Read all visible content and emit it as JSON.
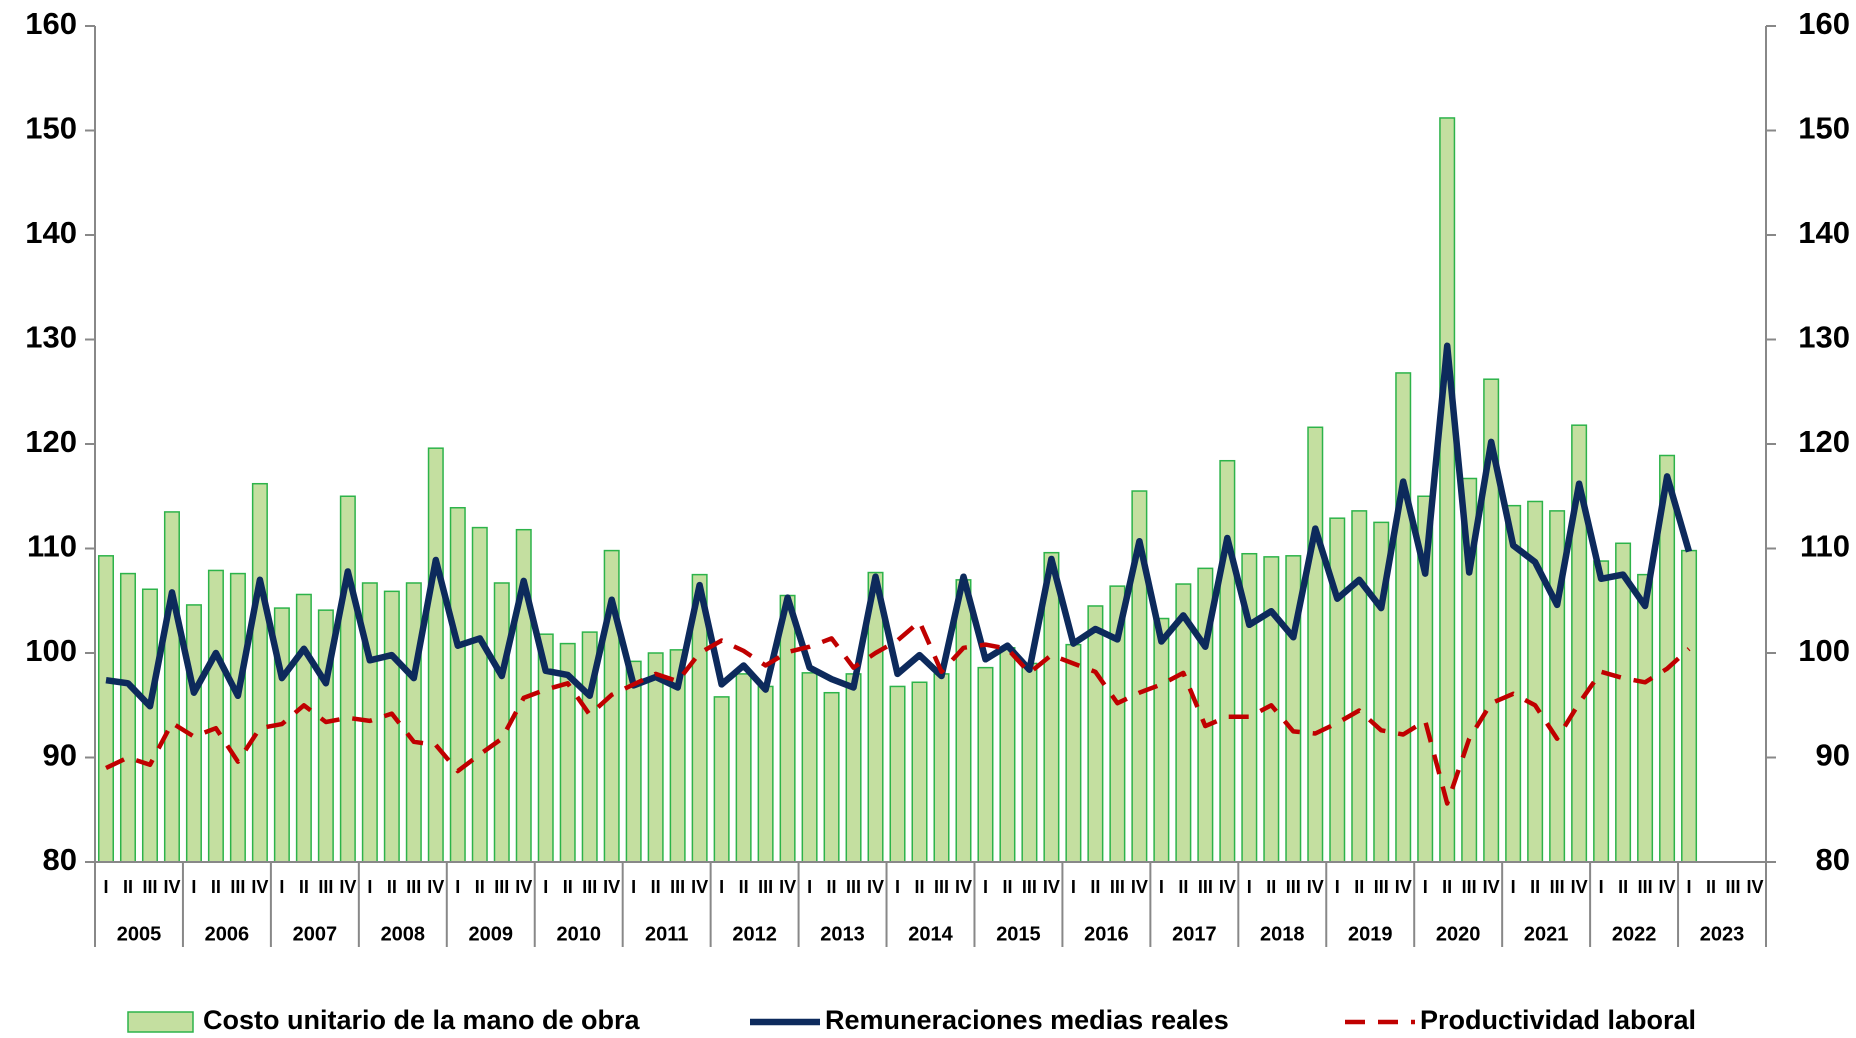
{
  "chart_data": {
    "type": "bar-line",
    "categories": [
      "I",
      "II",
      "III",
      "IV",
      "I",
      "II",
      "III",
      "IV",
      "I",
      "II",
      "III",
      "IV",
      "I",
      "II",
      "III",
      "IV",
      "I",
      "II",
      "III",
      "IV",
      "I",
      "II",
      "III",
      "IV",
      "I",
      "II",
      "III",
      "IV",
      "I",
      "II",
      "III",
      "IV",
      "I",
      "II",
      "III",
      "IV",
      "I",
      "II",
      "III",
      "IV",
      "I",
      "II",
      "III",
      "IV",
      "I",
      "II",
      "III",
      "IV",
      "I",
      "II",
      "III",
      "IV",
      "I",
      "II",
      "III",
      "IV",
      "I",
      "II",
      "III",
      "IV",
      "I",
      "II",
      "III",
      "IV",
      "I",
      "II",
      "III",
      "IV",
      "I",
      "II",
      "III",
      "IV",
      "I",
      "II",
      "III",
      "IV"
    ],
    "years": [
      "2005",
      "2006",
      "2007",
      "2008",
      "2009",
      "2010",
      "2011",
      "2012",
      "2013",
      "2014",
      "2015",
      "2016",
      "2017",
      "2018",
      "2019",
      "2020",
      "2021",
      "2022",
      "2023"
    ],
    "series": [
      {
        "name": "Costo unitario de la mano de obra",
        "kind": "bar",
        "color": "#c4dfa0",
        "edge": "#2db34a",
        "values": [
          109.3,
          107.6,
          106.1,
          113.5,
          104.6,
          107.9,
          107.6,
          116.2,
          104.3,
          105.6,
          104.1,
          115.0,
          106.7,
          105.9,
          106.7,
          119.6,
          113.9,
          112.0,
          106.7,
          111.8,
          101.8,
          100.9,
          102.0,
          109.8,
          99.2,
          100.0,
          100.3,
          107.5,
          95.8,
          98.0,
          96.8,
          105.5,
          98.1,
          96.2,
          98.0,
          107.7,
          96.8,
          97.2,
          98.0,
          107.0,
          98.6,
          100.5,
          99.0,
          109.6,
          100.8,
          104.5,
          106.4,
          115.5,
          103.3,
          106.6,
          108.1,
          118.4,
          109.5,
          109.2,
          109.3,
          121.6,
          112.9,
          113.6,
          112.5,
          126.8,
          115.0,
          151.2,
          116.7,
          126.2,
          114.1,
          114.5,
          113.6,
          121.8,
          108.8,
          110.5,
          107.5,
          118.9,
          109.8,
          null,
          null,
          null
        ]
      },
      {
        "name": "Remuneraciones medias reales",
        "kind": "line",
        "color": "#0d2a5c",
        "values": [
          97.4,
          97.1,
          94.9,
          105.8,
          96.2,
          100.0,
          95.9,
          107.0,
          97.6,
          100.4,
          97.1,
          107.8,
          99.3,
          99.8,
          97.6,
          108.9,
          100.7,
          101.4,
          97.8,
          106.9,
          98.3,
          97.9,
          95.9,
          105.1,
          96.9,
          97.7,
          96.7,
          106.5,
          97.0,
          98.8,
          96.5,
          105.3,
          98.6,
          97.5,
          96.7,
          107.3,
          98.0,
          99.8,
          97.8,
          107.3,
          99.4,
          100.7,
          98.4,
          109.0,
          100.9,
          102.3,
          101.3,
          110.7,
          101.1,
          103.6,
          100.6,
          111.0,
          102.7,
          104.0,
          101.5,
          111.9,
          105.2,
          107.0,
          104.3,
          116.4,
          107.6,
          129.4,
          107.7,
          120.2,
          110.3,
          108.7,
          104.6,
          116.2,
          107.1,
          107.5,
          104.5,
          116.9,
          109.7,
          null,
          null,
          null
        ]
      },
      {
        "name": "Productividad laboral",
        "kind": "dashed",
        "color": "#c00000",
        "values": [
          89.0,
          90.0,
          89.3,
          93.3,
          92.0,
          92.8,
          89.6,
          92.8,
          93.2,
          95.0,
          93.4,
          93.8,
          93.5,
          94.2,
          91.5,
          91.2,
          88.7,
          90.3,
          91.8,
          95.7,
          96.5,
          97.1,
          94.1,
          96.0,
          97.0,
          98.0,
          97.3,
          100.0,
          101.2,
          100.2,
          98.8,
          100.1,
          100.6,
          101.4,
          98.6,
          100.0,
          101.2,
          103.0,
          98.2,
          100.5,
          100.8,
          100.4,
          98.1,
          99.8,
          99.0,
          98.2,
          95.2,
          96.2,
          97.0,
          98.1,
          93.0,
          93.9,
          93.9,
          95.0,
          92.5,
          92.3,
          93.3,
          94.5,
          92.6,
          92.2,
          93.5,
          85.6,
          91.8,
          95.2,
          96.1,
          95.0,
          91.8,
          95.2,
          98.2,
          97.6,
          97.2,
          98.5,
          100.4,
          null,
          null,
          null
        ]
      }
    ],
    "ylim": [
      80,
      160
    ],
    "yticks": [
      80,
      90,
      100,
      110,
      120,
      130,
      140,
      150,
      160
    ],
    "y2lim": [
      80,
      160
    ],
    "y2ticks": [
      80,
      90,
      100,
      110,
      120,
      130,
      140,
      150,
      160
    ],
    "legend": "bottom"
  }
}
